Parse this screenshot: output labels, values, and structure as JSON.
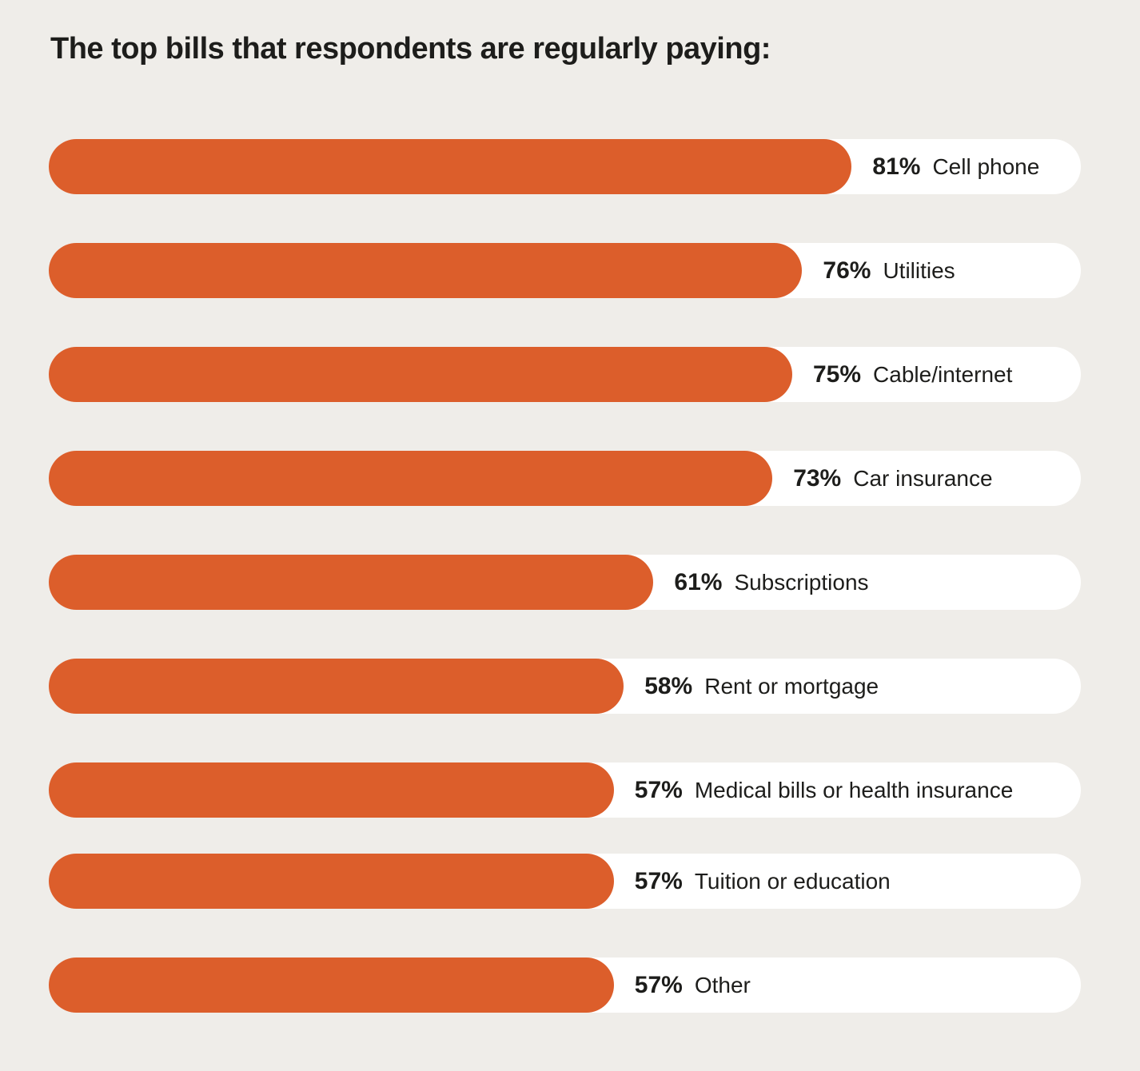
{
  "title": "The top bills that respondents are regularly paying:",
  "colors": {
    "background": "#EFEDE9",
    "track": "#FFFFFF",
    "bar": "#DC5E2B",
    "text": "#1D1D1B"
  },
  "chart_data": {
    "type": "bar",
    "orientation": "horizontal",
    "title": "The top bills that respondents are regularly paying:",
    "categories": [
      "Cell phone",
      "Utilities",
      "Cable/internet",
      "Car insurance",
      "Subscriptions",
      "Rent or mortgage",
      "Medical bills or health insurance",
      "Tuition or education",
      "Other"
    ],
    "values": [
      81,
      76,
      75,
      73,
      61,
      58,
      57,
      57,
      57
    ],
    "value_suffix": "%",
    "value_labels": [
      "81%",
      "76%",
      "75%",
      "73%",
      "61%",
      "58%",
      "57%",
      "57%",
      "57%"
    ],
    "xlim": [
      0,
      100
    ],
    "grid": false,
    "legend": false,
    "data_labels_position": "after-bar-inside-track"
  }
}
